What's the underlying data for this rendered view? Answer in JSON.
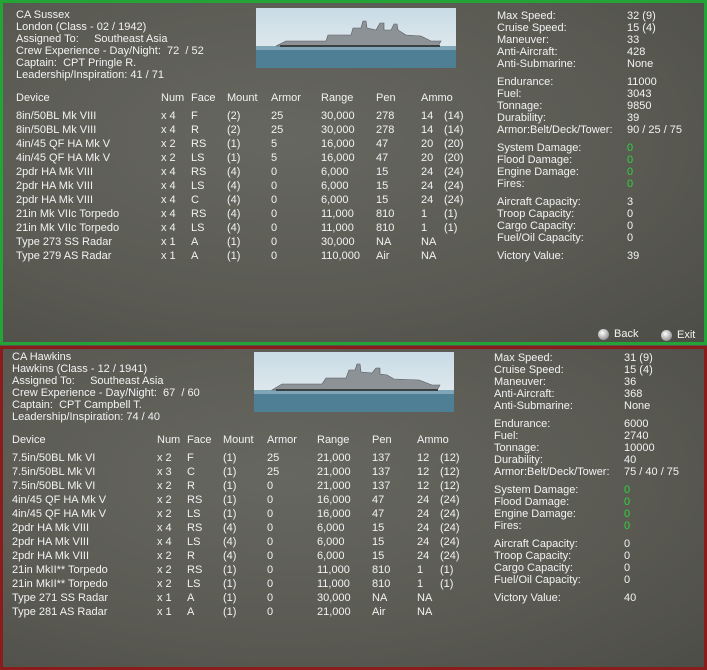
{
  "panels": [
    {
      "header": [
        "CA Sussex",
        "London (Class - 02 / 1942)",
        "Assigned To:     Southeast Asia",
        "Crew Experience - Day/Night:  72  / 52",
        "Captain:  CPT Pringle R.",
        "Leadership/Inspiration: 41 / 71"
      ],
      "columns": [
        "Device",
        "Num",
        "Face",
        "Mount",
        "Armor",
        "Range",
        "Pen",
        "Ammo"
      ],
      "rows": [
        [
          "8in/50BL Mk VIII",
          "x 4",
          "F",
          "(2)",
          "25",
          "30,000",
          "278",
          "14",
          "(14)"
        ],
        [
          "8in/50BL Mk VIII",
          "x 4",
          "R",
          "(2)",
          "25",
          "30,000",
          "278",
          "14",
          "(14)"
        ],
        [
          "4in/45 QF HA Mk V",
          "x 2",
          "RS",
          "(1)",
          "5",
          "16,000",
          "47",
          "20",
          "(20)"
        ],
        [
          "4in/45 QF HA Mk V",
          "x 2",
          "LS",
          "(1)",
          "5",
          "16,000",
          "47",
          "20",
          "(20)"
        ],
        [
          "2pdr HA Mk VIII",
          "x 4",
          "RS",
          "(4)",
          "0",
          "6,000",
          "15",
          "24",
          "(24)"
        ],
        [
          "2pdr HA Mk VIII",
          "x 4",
          "LS",
          "(4)",
          "0",
          "6,000",
          "15",
          "24",
          "(24)"
        ],
        [
          "2pdr HA Mk VIII",
          "x 4",
          "C",
          "(4)",
          "0",
          "6,000",
          "15",
          "24",
          "(24)"
        ],
        [
          "21in Mk VIIc Torpedo",
          "x 4",
          "RS",
          "(4)",
          "0",
          "11,000",
          "810",
          "1",
          "(1)"
        ],
        [
          "21in Mk VIIc Torpedo",
          "x 4",
          "LS",
          "(4)",
          "0",
          "11,000",
          "810",
          "1",
          "(1)"
        ],
        [
          "Type 273 SS Radar",
          "x 1",
          "A",
          "(1)",
          "0",
          "30,000",
          "NA",
          "NA"
        ],
        [
          "Type 279 AS Radar",
          "x 1",
          "A",
          "(1)",
          "0",
          "110,000",
          "Air",
          "NA"
        ]
      ],
      "stats": [
        [
          {
            "label": "Max Speed:",
            "value": "32 (9)"
          },
          {
            "label": "Cruise Speed:",
            "value": "15 (4)"
          },
          {
            "label": "Maneuver:",
            "value": "33"
          },
          {
            "label": "Anti-Aircraft:",
            "value": "428"
          },
          {
            "label": "Anti-Submarine:",
            "value": "None"
          }
        ],
        [
          {
            "label": "Endurance:",
            "value": "11000"
          },
          {
            "label": "Fuel:",
            "value": "3043"
          },
          {
            "label": "Tonnage:",
            "value": "9850"
          },
          {
            "label": "Durability:",
            "value": "39"
          },
          {
            "label": "Armor:Belt/Deck/Tower:",
            "value": "90 / 25 / 75"
          }
        ],
        [
          {
            "label": "System Damage:",
            "value": "0"
          },
          {
            "label": "Flood Damage:",
            "value": "0"
          },
          {
            "label": "Engine Damage:",
            "value": "0"
          },
          {
            "label": "Fires:",
            "value": "0"
          }
        ],
        [
          {
            "label": "Aircraft Capacity:",
            "value": "3"
          },
          {
            "label": "Troop Capacity:",
            "value": "0"
          },
          {
            "label": "Cargo Capacity:",
            "value": "0"
          },
          {
            "label": "Fuel/Oil Capacity:",
            "value": "0"
          }
        ],
        [
          {
            "label": "Victory Value:",
            "value": "39"
          }
        ]
      ]
    },
    {
      "header": [
        "CA Hawkins",
        "Hawkins (Class - 12 / 1941)",
        "Assigned To:     Southeast Asia",
        "Crew Experience - Day/Night:  67  / 60",
        "Captain:  CPT Campbell T.",
        "Leadership/Inspiration: 74 / 40"
      ],
      "columns": [
        "Device",
        "Num",
        "Face",
        "Mount",
        "Armor",
        "Range",
        "Pen",
        "Ammo"
      ],
      "rows": [
        [
          "7.5in/50BL Mk VI",
          "x 2",
          "F",
          "(1)",
          "25",
          "21,000",
          "137",
          "12",
          "(12)"
        ],
        [
          "7.5in/50BL Mk VI",
          "x 3",
          "C",
          "(1)",
          "25",
          "21,000",
          "137",
          "12",
          "(12)"
        ],
        [
          "7.5in/50BL Mk VI",
          "x 2",
          "R",
          "(1)",
          "0",
          "21,000",
          "137",
          "12",
          "(12)"
        ],
        [
          "4in/45 QF HA Mk V",
          "x 2",
          "RS",
          "(1)",
          "0",
          "16,000",
          "47",
          "24",
          "(24)"
        ],
        [
          "4in/45 QF HA Mk V",
          "x 2",
          "LS",
          "(1)",
          "0",
          "16,000",
          "47",
          "24",
          "(24)"
        ],
        [
          "2pdr HA Mk VIII",
          "x 4",
          "RS",
          "(4)",
          "0",
          "6,000",
          "15",
          "24",
          "(24)"
        ],
        [
          "2pdr HA Mk VIII",
          "x 4",
          "LS",
          "(4)",
          "0",
          "6,000",
          "15",
          "24",
          "(24)"
        ],
        [
          "2pdr HA Mk VIII",
          "x 2",
          "R",
          "(4)",
          "0",
          "6,000",
          "15",
          "24",
          "(24)"
        ],
        [
          "21in MkII** Torpedo",
          "x 2",
          "RS",
          "(1)",
          "0",
          "11,000",
          "810",
          "1",
          "(1)"
        ],
        [
          "21in MkII** Torpedo",
          "x 2",
          "LS",
          "(1)",
          "0",
          "11,000",
          "810",
          "1",
          "(1)"
        ],
        [
          "Type 271 SS Radar",
          "x 1",
          "A",
          "(1)",
          "0",
          "30,000",
          "NA",
          "NA"
        ],
        [
          "Type 281 AS Radar",
          "x 1",
          "A",
          "(1)",
          "0",
          "21,000",
          "Air",
          "NA"
        ]
      ],
      "stats": [
        [
          {
            "label": "Max Speed:",
            "value": "31 (9)"
          },
          {
            "label": "Cruise Speed:",
            "value": "15 (4)"
          },
          {
            "label": "Maneuver:",
            "value": "36"
          },
          {
            "label": "Anti-Aircraft:",
            "value": "368"
          },
          {
            "label": "Anti-Submarine:",
            "value": "None"
          }
        ],
        [
          {
            "label": "Endurance:",
            "value": "6000"
          },
          {
            "label": "Fuel:",
            "value": "2740"
          },
          {
            "label": "Tonnage:",
            "value": "10000"
          },
          {
            "label": "Durability:",
            "value": "40"
          },
          {
            "label": "Armor:Belt/Deck/Tower:",
            "value": "75 / 40 / 75"
          }
        ],
        [
          {
            "label": "System Damage:",
            "value": "0"
          },
          {
            "label": "Flood Damage:",
            "value": "0"
          },
          {
            "label": "Engine Damage:",
            "value": "0"
          },
          {
            "label": "Fires:",
            "value": "0"
          }
        ],
        [
          {
            "label": "Aircraft Capacity:",
            "value": "0"
          },
          {
            "label": "Troop Capacity:",
            "value": "0"
          },
          {
            "label": "Cargo Capacity:",
            "value": "0"
          },
          {
            "label": "Fuel/Oil Capacity:",
            "value": "0"
          }
        ],
        [
          {
            "label": "Victory Value:",
            "value": "40"
          }
        ]
      ]
    }
  ],
  "buttons": {
    "back": "Back",
    "exit": "Exit"
  }
}
